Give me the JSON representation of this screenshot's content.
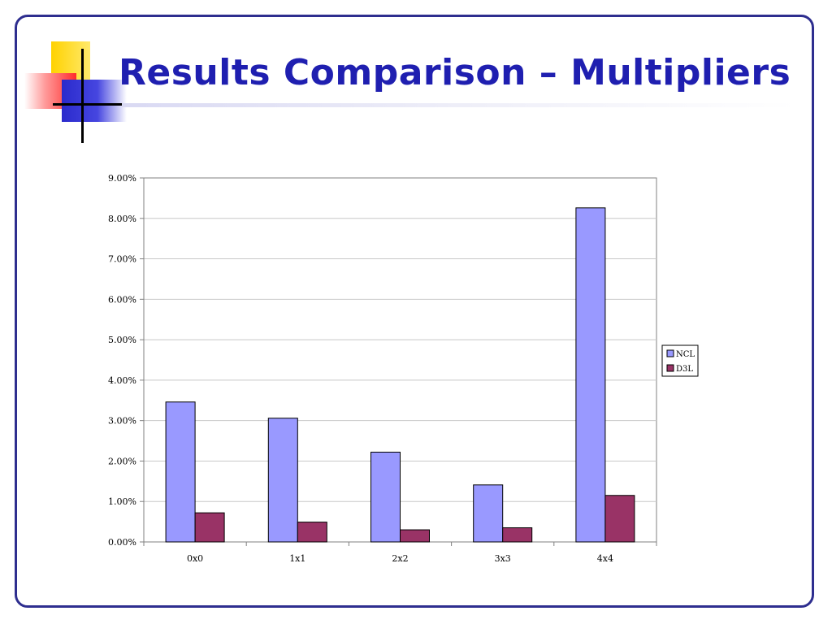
{
  "slide": {
    "title": "Results Comparison – Multipliers"
  },
  "colors": {
    "frame": "#2e2e8f",
    "title": "#1f1fb0",
    "ncl": "#9999ff",
    "d3l": "#993366"
  },
  "chart_data": {
    "type": "bar",
    "categories": [
      "0x0",
      "1x1",
      "2x2",
      "3x3",
      "4x4"
    ],
    "series": [
      {
        "name": "NCL",
        "color": "#9999ff",
        "values": [
          3.46,
          3.06,
          2.22,
          1.41,
          8.26
        ]
      },
      {
        "name": "D3L",
        "color": "#993366",
        "values": [
          0.72,
          0.49,
          0.3,
          0.35,
          1.15
        ]
      }
    ],
    "title": "",
    "xlabel": "",
    "ylabel": "",
    "ylim": [
      0,
      9
    ],
    "yticks": [
      "0.00%",
      "1.00%",
      "2.00%",
      "3.00%",
      "4.00%",
      "5.00%",
      "6.00%",
      "7.00%",
      "8.00%",
      "9.00%"
    ],
    "grid": true,
    "legend": "right"
  }
}
